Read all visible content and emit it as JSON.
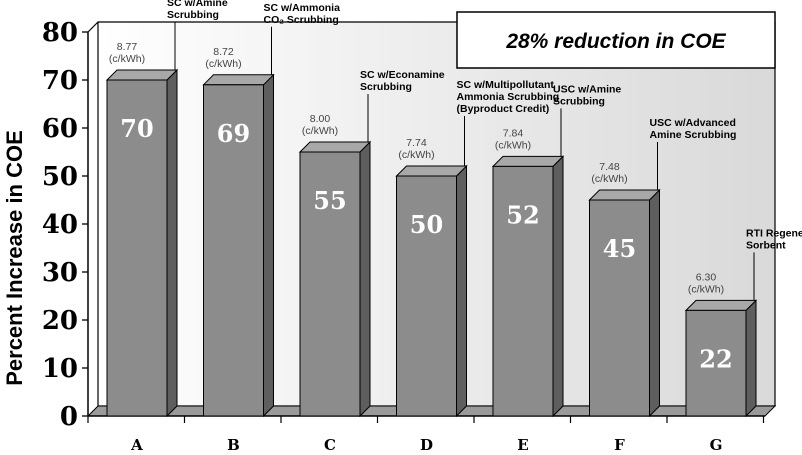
{
  "chart_data": {
    "type": "bar",
    "ylabel": "Percent Increase in COE",
    "xlabel": "",
    "ylim": [
      0,
      80
    ],
    "yticks": [
      0,
      10,
      20,
      30,
      40,
      50,
      60,
      70,
      80
    ],
    "categories": [
      "A",
      "B",
      "C",
      "D",
      "E",
      "F",
      "G"
    ],
    "values": [
      70,
      69,
      55,
      50,
      52,
      45,
      22
    ],
    "value_labels": [
      "70",
      "69",
      "55",
      "50",
      "52",
      "45",
      "22"
    ],
    "costs": [
      "8.77",
      "8.72",
      "8.00",
      "7.74",
      "7.84",
      "7.48",
      "6.30"
    ],
    "cost_unit": "(c/kWh)",
    "technologies": [
      [
        "SC w/Amine",
        "Scrubbing"
      ],
      [
        "SC w/Ammonia",
        "CO₂ Scrubbing"
      ],
      [
        "SC w/Econamine",
        "Scrubbing"
      ],
      [
        "SC w/Multipollutant",
        "Ammonia Scrubbing",
        "(Byproduct Credit)"
      ],
      [
        "USC w/Amine",
        "Scrubbing"
      ],
      [
        "USC w/Advanced",
        "Amine Scrubbing"
      ],
      [
        "RTI Regenerable",
        "Sorbent"
      ]
    ],
    "annotation": "28% reduction in COE",
    "grid": false,
    "colors": {
      "bar_front": "#8c8c8c",
      "bar_side": "#5e5e5e",
      "bar_top": "#a8a8a8",
      "wall": "#e6e6e6",
      "floor": "#9a9a9a"
    }
  }
}
